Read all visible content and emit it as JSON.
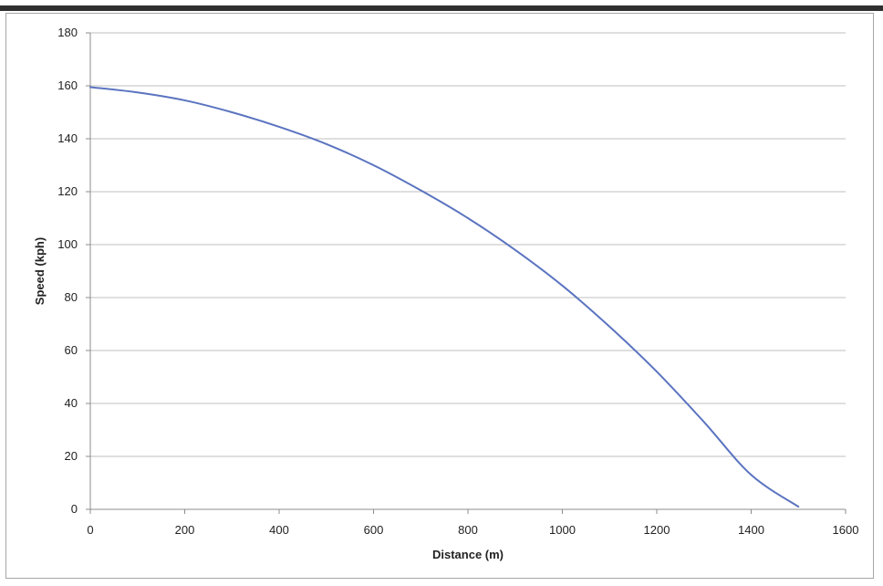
{
  "chart_data": {
    "type": "line",
    "title": "",
    "xlabel": "Distance (m)",
    "ylabel": "Speed (kph)",
    "xlim": [
      0,
      1600
    ],
    "ylim": [
      0,
      180
    ],
    "x_ticks": [
      "0",
      "200",
      "400",
      "600",
      "800",
      "1000",
      "1200",
      "1400",
      "1600"
    ],
    "y_ticks": [
      "0",
      "20",
      "40",
      "60",
      "80",
      "100",
      "120",
      "140",
      "160",
      "180"
    ],
    "grid": "horizontal",
    "legend": "none",
    "series": [
      {
        "color": "#5b74c0",
        "x": [
          0,
          100,
          200,
          300,
          400,
          500,
          600,
          700,
          800,
          900,
          1000,
          1100,
          1200,
          1300,
          1400,
          1500
        ],
        "y": [
          159.5,
          157.5,
          154.5,
          150,
          144.5,
          138,
          130,
          120.5,
          110,
          98,
          84.5,
          69,
          52,
          33,
          13,
          1
        ]
      }
    ],
    "colors": {
      "line": "#5b74c0",
      "grid": "#bfbfbf",
      "axis": "#8c8c8c"
    }
  }
}
